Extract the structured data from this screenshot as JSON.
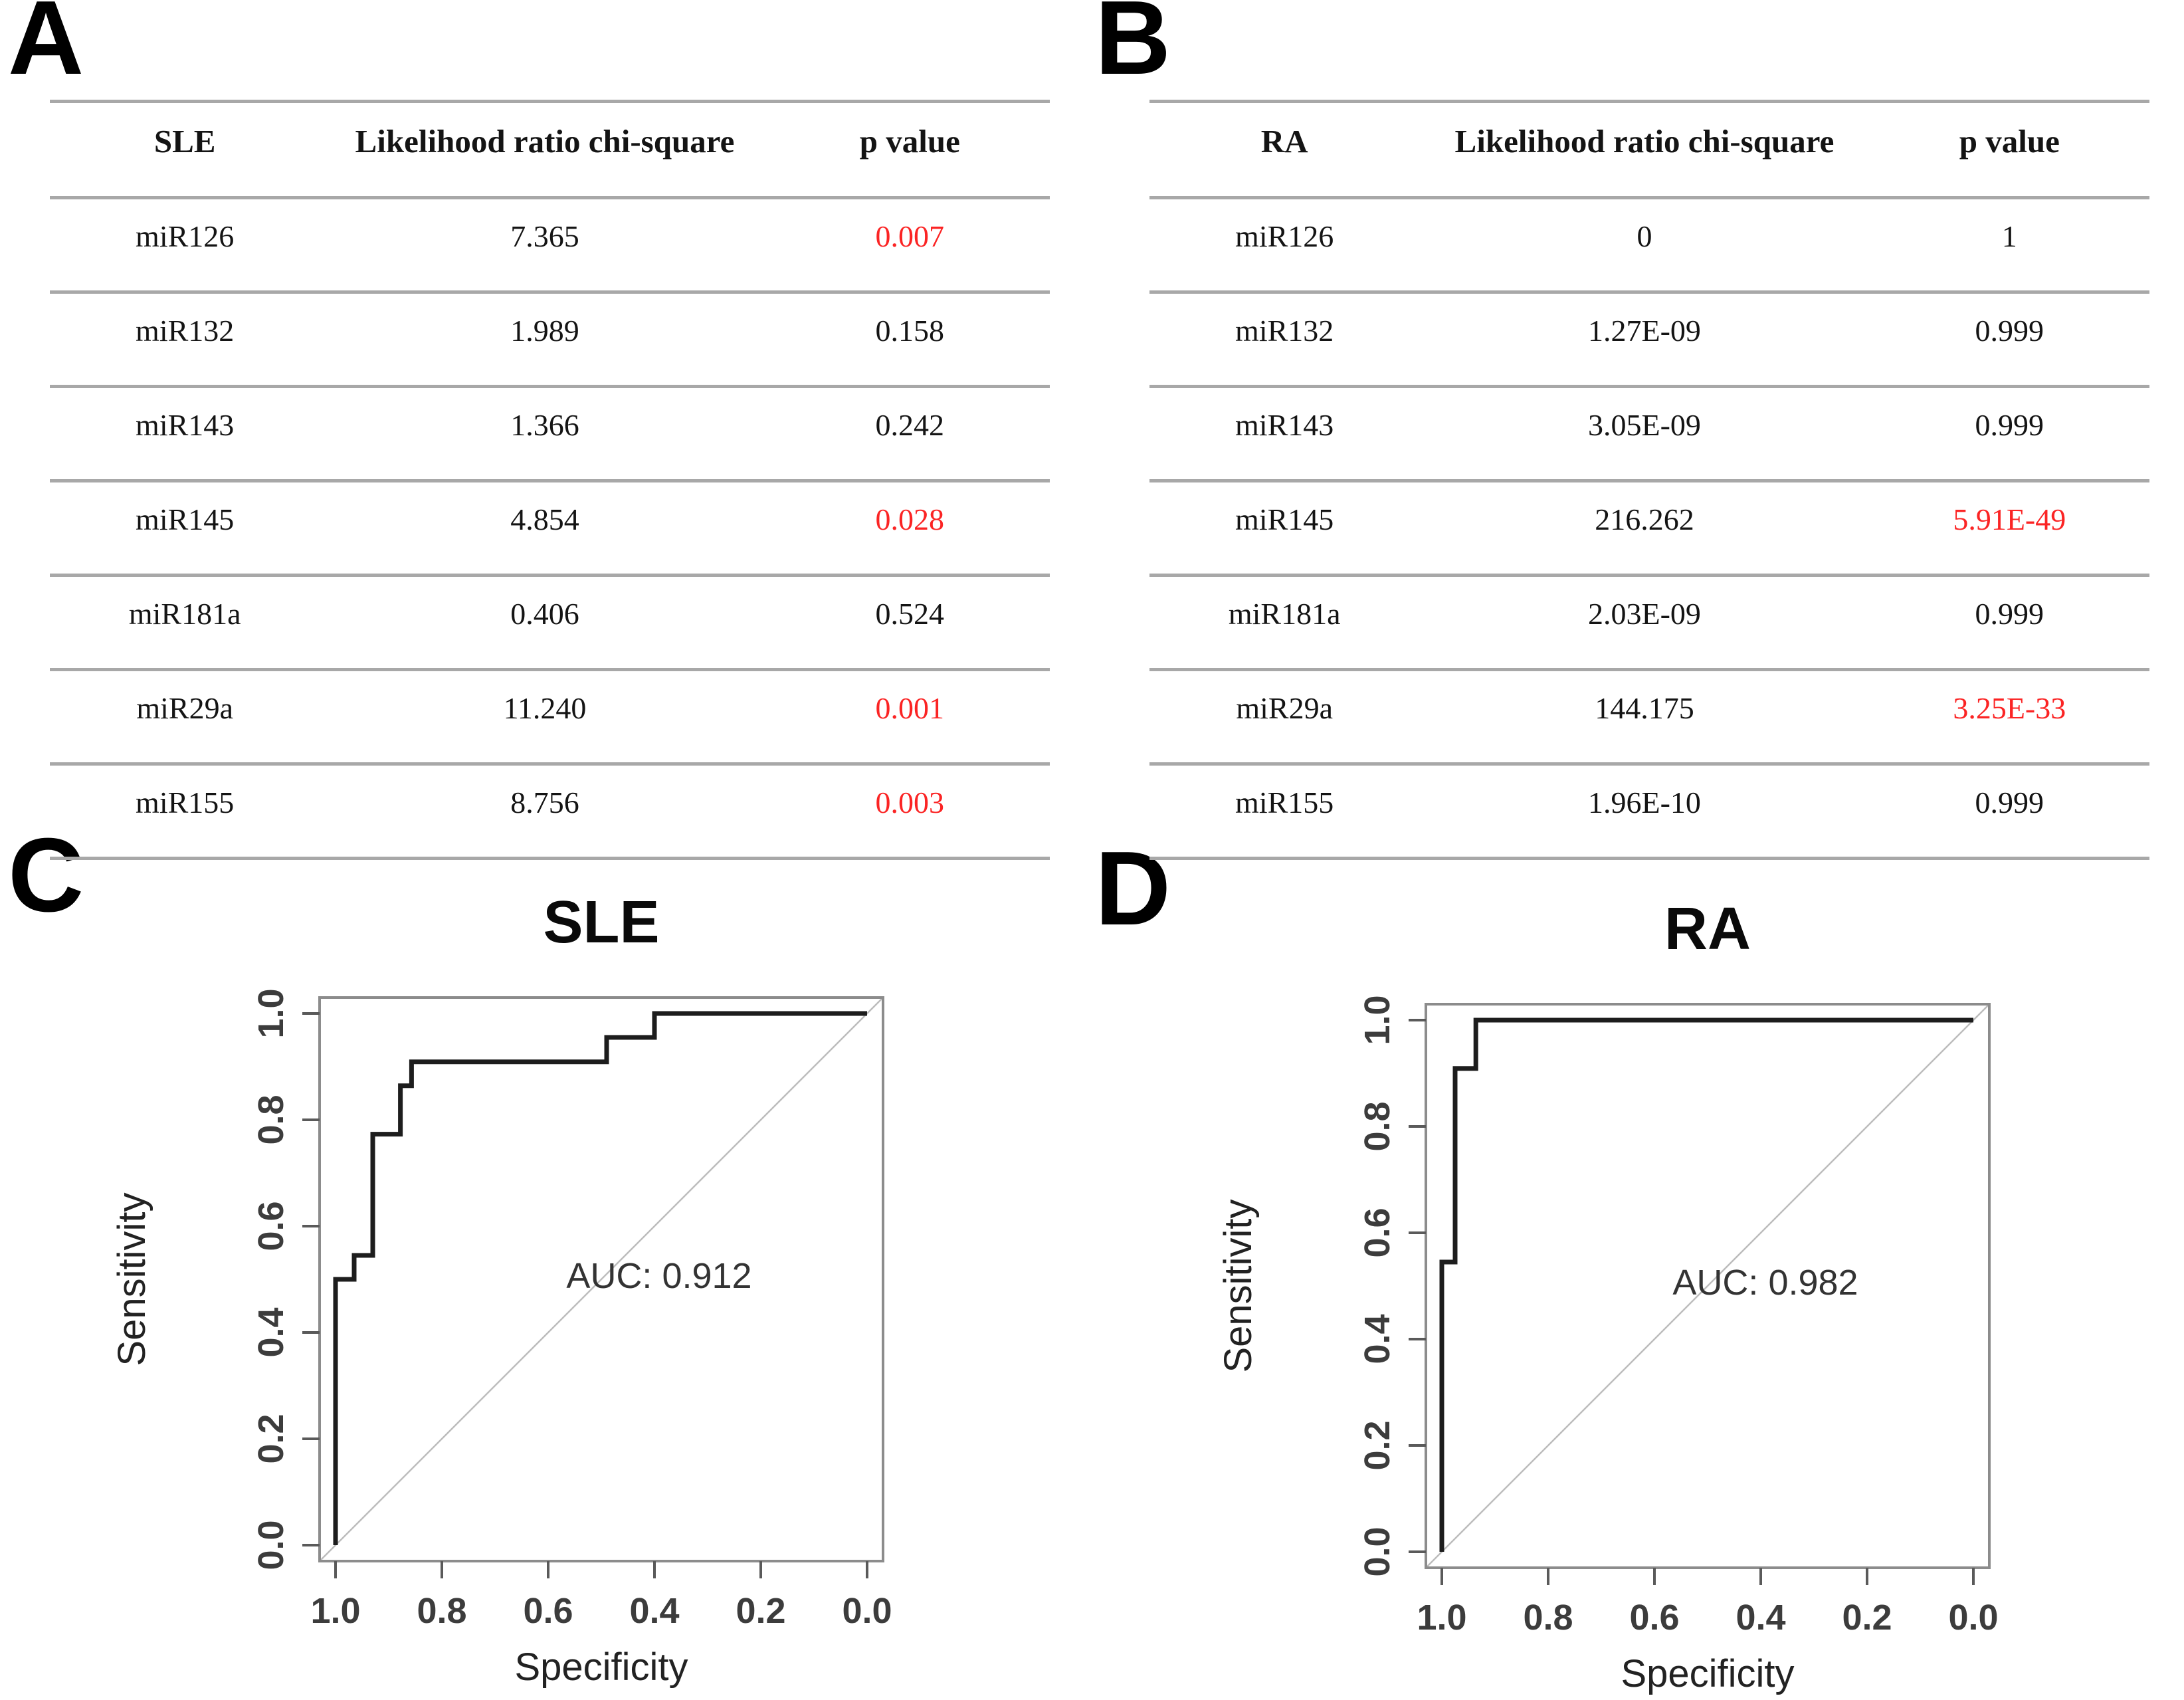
{
  "colors": {
    "significant_red": "#fb2424",
    "rule_gray": "#a8a8a8",
    "table_text": "#141414",
    "curve_black": "#1d1d1d",
    "diagonal_gray": "#bdbdbd",
    "box_gray": "#8c8c8c",
    "tick_gray": "#5a5a5a",
    "tick_label_gray": "#3c3c3c",
    "axis_title_gray": "#222222",
    "auc_text_gray": "#333333"
  },
  "panels": {
    "a": {
      "label": "A",
      "table": {
        "headers": [
          "SLE",
          "Likelihood ratio chi-square",
          "p value"
        ],
        "rows": [
          {
            "name": "miR126",
            "chi_square": "7.365",
            "p_value": "0.007",
            "significant": true
          },
          {
            "name": "miR132",
            "chi_square": "1.989",
            "p_value": "0.158",
            "significant": false
          },
          {
            "name": "miR143",
            "chi_square": "1.366",
            "p_value": "0.242",
            "significant": false
          },
          {
            "name": "miR145",
            "chi_square": "4.854",
            "p_value": "0.028",
            "significant": true
          },
          {
            "name": "miR181a",
            "chi_square": "0.406",
            "p_value": "0.524",
            "significant": false
          },
          {
            "name": "miR29a",
            "chi_square": "11.240",
            "p_value": "0.001",
            "significant": true
          },
          {
            "name": "miR155",
            "chi_square": "8.756",
            "p_value": "0.003",
            "significant": true
          }
        ]
      }
    },
    "b": {
      "label": "B",
      "table": {
        "headers": [
          "RA",
          "Likelihood ratio chi-square",
          "p value"
        ],
        "rows": [
          {
            "name": "miR126",
            "chi_square": "0",
            "p_value": "1",
            "significant": false
          },
          {
            "name": "miR132",
            "chi_square": "1.27E-09",
            "p_value": "0.999",
            "significant": false
          },
          {
            "name": "miR143",
            "chi_square": "3.05E-09",
            "p_value": "0.999",
            "significant": false
          },
          {
            "name": "miR145",
            "chi_square": "216.262",
            "p_value": "5.91E-49",
            "significant": true
          },
          {
            "name": "miR181a",
            "chi_square": "2.03E-09",
            "p_value": "0.999",
            "significant": false
          },
          {
            "name": "miR29a",
            "chi_square": "144.175",
            "p_value": "3.25E-33",
            "significant": true
          },
          {
            "name": "miR155",
            "chi_square": "1.96E-10",
            "p_value": "0.999",
            "significant": false
          }
        ]
      }
    },
    "c": {
      "label": "C",
      "chart_index": 0
    },
    "d": {
      "label": "D",
      "chart_index": 1
    }
  },
  "chart_data": [
    {
      "type": "line",
      "subtype": "roc-step-curve",
      "title": "SLE",
      "xlabel": "Specificity",
      "ylabel": "Sensitivity",
      "auc": 0.912,
      "auc_label": "AUC: 0.912",
      "x_axis": {
        "reversed": true,
        "range": [
          1.0,
          0.0
        ],
        "ticks": [
          "1.0",
          "0.8",
          "0.6",
          "0.4",
          "0.2",
          "0.0"
        ]
      },
      "y_axis": {
        "range": [
          0.0,
          1.0
        ],
        "ticks": [
          "0.0",
          "0.2",
          "0.4",
          "0.6",
          "0.8",
          "1.0"
        ]
      },
      "grid": false,
      "diagonal_reference": true,
      "roc_points": [
        [
          1.0,
          0.0
        ],
        [
          1.0,
          0.5
        ],
        [
          0.965,
          0.5
        ],
        [
          0.965,
          0.545
        ],
        [
          0.93,
          0.545
        ],
        [
          0.93,
          0.773
        ],
        [
          0.878,
          0.773
        ],
        [
          0.878,
          0.864
        ],
        [
          0.857,
          0.864
        ],
        [
          0.857,
          0.909
        ],
        [
          0.49,
          0.909
        ],
        [
          0.49,
          0.955
        ],
        [
          0.4,
          0.955
        ],
        [
          0.4,
          1.0
        ],
        [
          0.0,
          1.0
        ]
      ]
    },
    {
      "type": "line",
      "subtype": "roc-step-curve",
      "title": "RA",
      "xlabel": "Specificity",
      "ylabel": "Sensitivity",
      "auc": 0.982,
      "auc_label": "AUC: 0.982",
      "x_axis": {
        "reversed": true,
        "range": [
          1.0,
          0.0
        ],
        "ticks": [
          "1.0",
          "0.8",
          "0.6",
          "0.4",
          "0.2",
          "0.0"
        ]
      },
      "y_axis": {
        "range": [
          0.0,
          1.0
        ],
        "ticks": [
          "0.0",
          "0.2",
          "0.4",
          "0.6",
          "0.8",
          "1.0"
        ]
      },
      "grid": false,
      "diagonal_reference": true,
      "roc_points": [
        [
          1.0,
          0.0
        ],
        [
          1.0,
          0.545
        ],
        [
          0.975,
          0.545
        ],
        [
          0.975,
          0.909
        ],
        [
          0.936,
          0.909
        ],
        [
          0.936,
          1.0
        ],
        [
          0.0,
          1.0
        ]
      ]
    }
  ]
}
